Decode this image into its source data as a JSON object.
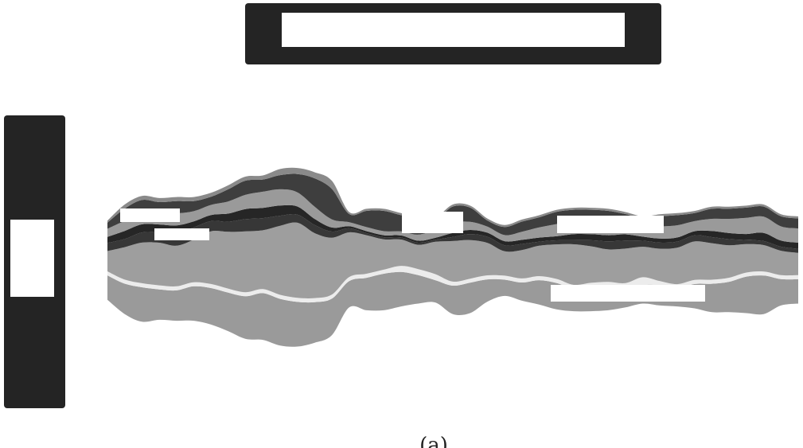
{
  "chart_data": {
    "type": "area",
    "subtype": "streamgraph",
    "title": "",
    "xlabel": "",
    "ylabel": "",
    "caption": "(a)",
    "x": [
      0,
      1,
      2,
      3,
      4,
      5,
      6,
      7,
      8,
      9,
      10,
      11,
      12,
      13,
      14,
      15,
      16,
      17,
      18,
      19,
      20,
      21,
      22,
      23,
      24,
      25,
      26,
      27,
      28,
      29,
      30,
      31,
      32,
      33,
      34,
      35,
      36,
      37,
      38,
      39,
      40
    ],
    "series": [
      {
        "color": "#9a9a9a",
        "values": [
          12,
          15,
          17,
          15,
          15,
          17,
          18,
          19,
          21,
          23,
          23,
          22,
          20,
          18,
          13,
          16,
          18,
          17,
          14,
          11,
          14,
          15,
          11,
          8,
          9,
          12,
          13,
          11,
          12,
          11,
          8,
          9,
          10,
          9,
          12,
          14,
          15,
          18,
          19,
          13,
          12
        ]
      },
      {
        "color": "#ececec",
        "values": [
          2,
          2,
          2,
          2,
          2,
          2,
          2,
          2,
          2,
          2,
          2,
          2,
          2,
          2,
          2,
          2,
          2,
          3,
          3,
          3,
          2,
          2,
          2,
          2,
          2,
          2,
          2,
          2,
          2,
          3,
          4,
          4,
          2,
          2,
          2,
          2,
          2,
          2,
          2,
          2,
          2
        ]
      },
      {
        "color": "#9e9e9e",
        "values": [
          10,
          16,
          20,
          21,
          20,
          21,
          26,
          28,
          30,
          29,
          34,
          37,
          32,
          28,
          22,
          19,
          15,
          13,
          12,
          16,
          20,
          19,
          16,
          12,
          14,
          15,
          17,
          20,
          18,
          16,
          17,
          15,
          16,
          18,
          19,
          18,
          16,
          14,
          13,
          12,
          11
        ]
      },
      {
        "color": "#373737",
        "values": [
          4,
          4,
          5,
          5,
          6,
          6,
          5,
          5,
          6,
          6,
          5,
          4,
          4,
          3,
          2,
          1,
          1,
          1,
          1,
          1,
          2,
          3,
          3,
          3,
          3,
          2,
          2,
          2,
          3,
          4,
          4,
          3,
          3,
          3,
          3,
          3,
          3,
          2,
          2,
          2,
          2
        ]
      },
      {
        "color": "#262626",
        "values": [
          3,
          4,
          4,
          4,
          4,
          3,
          3,
          4,
          5,
          5,
          5,
          4,
          3,
          2,
          1,
          1,
          1,
          1,
          1,
          1,
          2,
          2,
          2,
          2,
          2,
          2,
          2,
          3,
          3,
          3,
          3,
          2,
          2,
          2,
          2,
          3,
          3,
          3,
          4,
          3,
          3
        ]
      },
      {
        "color": "#9a9a9a",
        "values": [
          4,
          5,
          6,
          6,
          6,
          5,
          5,
          6,
          7,
          8,
          8,
          7,
          6,
          4,
          2,
          2,
          2,
          2,
          3,
          4,
          5,
          4,
          3,
          3,
          4,
          5,
          6,
          6,
          6,
          6,
          5,
          5,
          6,
          6,
          5,
          6,
          7,
          8,
          8,
          7,
          7
        ]
      },
      {
        "color": "#3e3e3e",
        "values": [
          3,
          6,
          6,
          5,
          6,
          5,
          4,
          6,
          7,
          6,
          7,
          9,
          14,
          15,
          4,
          8,
          10,
          8,
          8,
          5,
          8,
          7,
          3,
          4,
          5,
          5,
          6,
          6,
          6,
          6,
          5,
          4,
          5,
          5,
          4,
          5,
          5,
          5,
          5,
          5,
          5
        ]
      },
      {
        "color": "#8a8a8a",
        "values": [
          1,
          2,
          2,
          2,
          2,
          2,
          2,
          2,
          2,
          2,
          3,
          3,
          3,
          4,
          1,
          1,
          1,
          1,
          1,
          1,
          1,
          1,
          1,
          1,
          1,
          1,
          1,
          1,
          1,
          1,
          1,
          1,
          1,
          1,
          1,
          1,
          1,
          1,
          1,
          1,
          1
        ]
      }
    ]
  },
  "labels": [
    "",
    "",
    "",
    "",
    "",
    "",
    ""
  ]
}
